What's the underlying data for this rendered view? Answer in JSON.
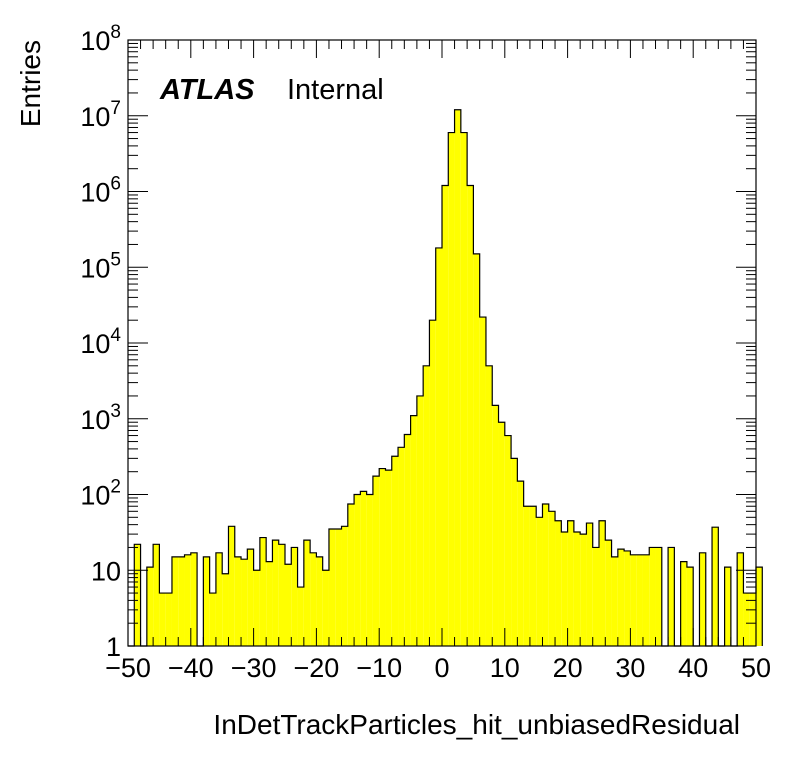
{
  "chart_data": {
    "type": "bar",
    "xlabel": "InDetTrackParticles_hit_unbiasedResidual",
    "ylabel": "Entries",
    "xlim": [
      -50,
      50
    ],
    "ylim": [
      1,
      100000000
    ],
    "yscale": "log",
    "x_tick_labels": [
      "−50",
      "−40",
      "−30",
      "−20",
      "−10",
      "0",
      "10",
      "20",
      "30",
      "40",
      "50"
    ],
    "y_tick_labels": [
      {
        "base": "1",
        "exp": ""
      },
      {
        "base": "10",
        "exp": ""
      },
      {
        "base": "10",
        "exp": "2"
      },
      {
        "base": "10",
        "exp": "3"
      },
      {
        "base": "10",
        "exp": "4"
      },
      {
        "base": "10",
        "exp": "5"
      },
      {
        "base": "10",
        "exp": "6"
      },
      {
        "base": "10",
        "exp": "7"
      },
      {
        "base": "10",
        "exp": "8"
      }
    ],
    "annotation": {
      "bold": "ATLAS",
      "regular": "Internal"
    },
    "fill_color": "#ffff00",
    "line_color": "#000000",
    "bin_width": 1,
    "bins_low_edge": -50,
    "values": [
      1,
      22,
      1,
      11,
      22,
      5,
      5,
      15,
      15,
      16,
      17,
      1,
      15,
      5,
      17,
      9,
      38,
      15,
      14,
      19,
      10,
      27,
      13,
      25,
      22,
      12,
      20,
      6,
      25,
      17,
      15,
      10,
      35,
      35,
      38,
      75,
      100,
      110,
      100,
      175,
      220,
      210,
      320,
      420,
      620,
      1100,
      2000,
      5000,
      20000,
      180000,
      1200000,
      6000000,
      12000000,
      6000000,
      1200000,
      150000,
      22000,
      5000,
      1500,
      900,
      600,
      300,
      150,
      70,
      70,
      50,
      75,
      60,
      45,
      32,
      45,
      32,
      30,
      42,
      20,
      45,
      25,
      15,
      19,
      18,
      16,
      16,
      16,
      20,
      20,
      1,
      20,
      1,
      13,
      11,
      1,
      17,
      1,
      37,
      1,
      11,
      1,
      17,
      5,
      5,
      11
    ]
  }
}
